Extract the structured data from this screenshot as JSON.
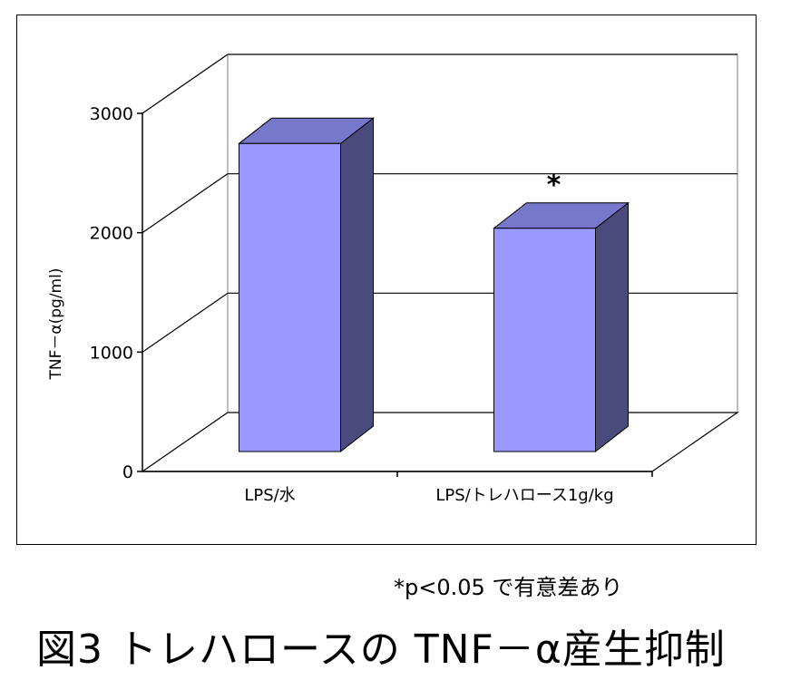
{
  "figure": {
    "title": "図3 トレハロースの TNF－α産生抑制",
    "footnote": "*p<0.05 で有意差あり"
  },
  "colors": {
    "bar_front": "#9999ff",
    "bar_side": "#4a4a7d",
    "bar_top": "#7777cc",
    "grid": "#000000",
    "wall": "#ffffff"
  },
  "chart_data": {
    "type": "bar",
    "style": "3d",
    "categories": [
      "LPS/水",
      "LPS/トレハロース1g/kg"
    ],
    "values": [
      2580,
      1870
    ],
    "ylabel": "TNF－α(pg/ml)",
    "xlabel": "",
    "ylim": [
      0,
      3000
    ],
    "yticks": [
      "0",
      "1000",
      "2000",
      "3000"
    ],
    "ytick_values": [
      0,
      1000,
      2000,
      3000
    ],
    "grid": true,
    "annotations": [
      {
        "category_index": 1,
        "text": "*"
      }
    ]
  }
}
